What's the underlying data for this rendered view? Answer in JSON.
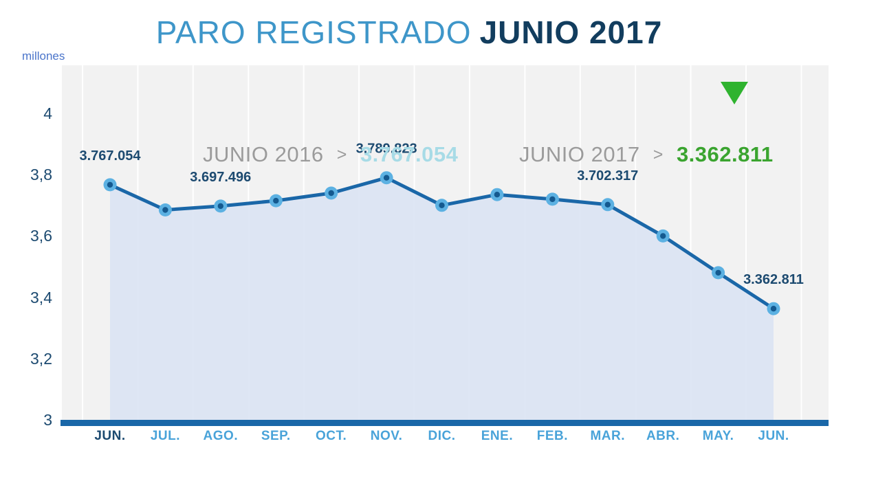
{
  "title": {
    "regular": "PARO REGISTRADO",
    "bold": "JUNIO 2017"
  },
  "axis": {
    "unit_label": "millones",
    "y_tick_labels": [
      "4",
      "3,8",
      "3,6",
      "3,4",
      "3,2",
      "3"
    ]
  },
  "comparison": {
    "previous": {
      "label": "JUNIO 2016",
      "separator": ">",
      "value": "3.767.054"
    },
    "current": {
      "label": "JUNIO 2017",
      "separator": ">",
      "value": "3.362.811",
      "trend": "down"
    }
  },
  "chart_data": {
    "type": "area",
    "title": "PARO REGISTRADO JUNIO 2017",
    "ylabel": "millones",
    "ylim": [
      3.0,
      4.0
    ],
    "y_ticks": [
      4,
      3.8,
      3.6,
      3.4,
      3.2,
      3
    ],
    "categories": [
      "JUN.",
      "JUL.",
      "AGO.",
      "SEP.",
      "OCT.",
      "NOV.",
      "DIC.",
      "ENE.",
      "FEB.",
      "MAR.",
      "ABR.",
      "MAY.",
      "JUN."
    ],
    "values_millions": [
      3.767054,
      3.685,
      3.697496,
      3.715,
      3.74,
      3.789823,
      3.7,
      3.735,
      3.72,
      3.702317,
      3.6,
      3.48,
      3.362811
    ],
    "point_labels": [
      "3.767.054",
      "",
      "3.697.496",
      "",
      "",
      "3.789.823",
      "",
      "",
      "",
      "3.702.317",
      "",
      "",
      "3.362.811"
    ],
    "legend_position": "top-inside",
    "grid": "vertical-white-on-gray"
  },
  "colors": {
    "title_regular": "#3e96c9",
    "title_bold": "#123d5e",
    "unit_label": "#4a74ca",
    "tick_label": "#1c4a70",
    "plot_bg": "#f2f2f2",
    "gridline": "#ffffff",
    "area_fill": "#dbe4f3",
    "line": "#1a67a8",
    "marker_outer": "#5cb1e2",
    "marker_inner": "#14598f",
    "axis_bar": "#1a67a8",
    "month_label": "#49a3d9",
    "month_label_first": "#1c4a70",
    "annotation_gray": "#9b9b9b",
    "annotation_prev_value": "#a7dbe6",
    "annotation_curr_value": "#3aa42f",
    "trend_triangle": "#2fb32f",
    "data_label": "#1c4a70"
  }
}
